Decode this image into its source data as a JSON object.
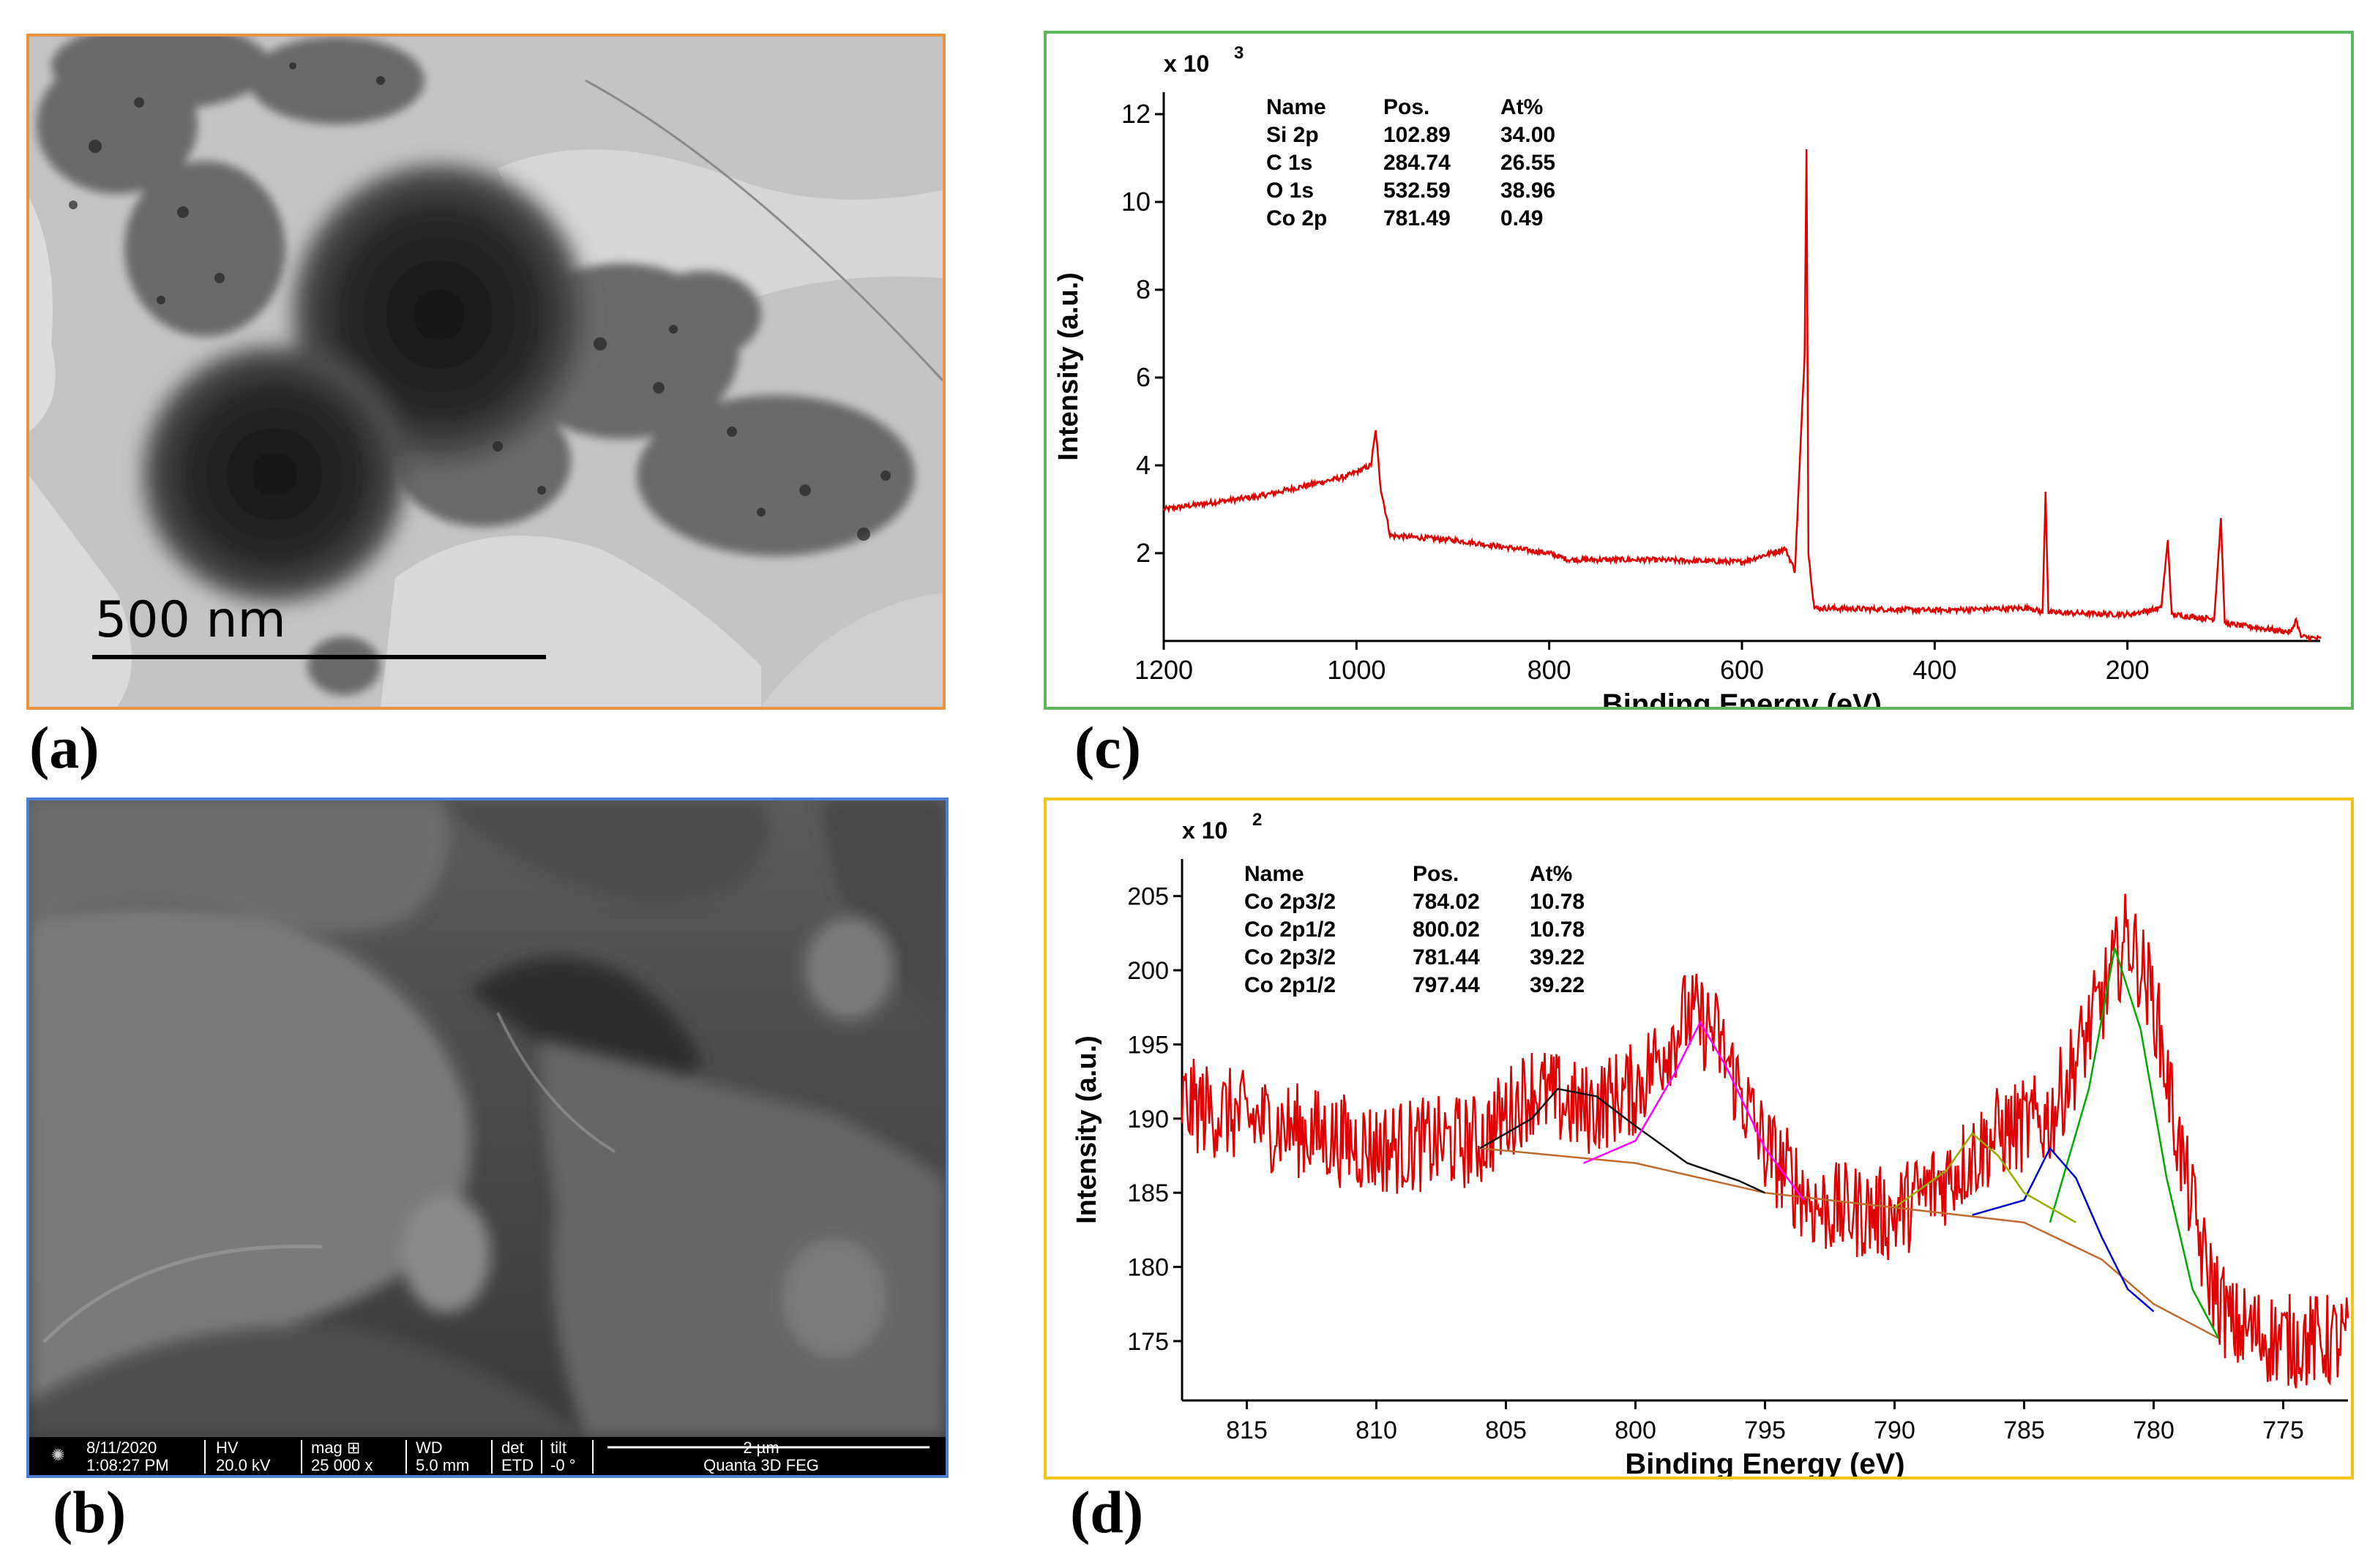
{
  "panel_labels": {
    "a": "(a)",
    "b": "(b)",
    "c": "(c)",
    "d": "(d)"
  },
  "tem": {
    "scale_label": "500 nm",
    "border_color": "#f0903a"
  },
  "sem": {
    "border_color": "#4a7fd4",
    "info": {
      "date": "8/11/2020",
      "time": "1:08:27 PM",
      "hv_label": "HV",
      "hv": "20.0 kV",
      "mag_label": "mag ⊞",
      "mag": "25 000 x",
      "wd_label": "WD",
      "wd": "5.0 mm",
      "det_label": "det",
      "det": "ETD",
      "tilt_label": "tilt",
      "tilt": "-0 °",
      "scale_label": "2 µm",
      "instrument": "Quanta 3D FEG"
    }
  },
  "chart_data": [
    {
      "id": "c",
      "type": "line",
      "border_color": "#5cb85c",
      "line_color": "#e00000",
      "xlabel": "Binding Energy (eV)",
      "ylabel": "Intensity (a.u.)",
      "multiplier": "x 10",
      "multiplier_exp": "3",
      "xlim": [
        1200,
        0
      ],
      "ylim": [
        0,
        12.5
      ],
      "xticks": [
        1200,
        1000,
        800,
        600,
        400,
        200
      ],
      "yticks": [
        2,
        4,
        6,
        8,
        10,
        12
      ],
      "table": {
        "headers": [
          "Name",
          "Pos.",
          "At%"
        ],
        "rows": [
          [
            "Si 2p",
            "102.89",
            "34.00"
          ],
          [
            "C 1s",
            "284.74",
            "26.55"
          ],
          [
            "O 1s",
            "532.59",
            "38.96"
          ],
          [
            "Co 2p",
            "781.49",
            "0.49"
          ]
        ]
      },
      "series": [
        {
          "values_xy": [
            [
              1200,
              3.0
            ],
            [
              1100,
              3.3
            ],
            [
              1010,
              3.75
            ],
            [
              985,
              4.0
            ],
            [
              980,
              4.8
            ],
            [
              975,
              3.5
            ],
            [
              965,
              2.4
            ],
            [
              900,
              2.3
            ],
            [
              800,
              2.0
            ],
            [
              780,
              1.85
            ],
            [
              700,
              1.85
            ],
            [
              600,
              1.8
            ],
            [
              555,
              2.1
            ],
            [
              545,
              1.6
            ],
            [
              535,
              6.5
            ],
            [
              533,
              11.2
            ],
            [
              531,
              2.0
            ],
            [
              525,
              0.75
            ],
            [
              400,
              0.7
            ],
            [
              300,
              0.75
            ],
            [
              288,
              0.65
            ],
            [
              285,
              3.4
            ],
            [
              282,
              0.65
            ],
            [
              200,
              0.6
            ],
            [
              165,
              0.75
            ],
            [
              158,
              2.3
            ],
            [
              154,
              0.6
            ],
            [
              110,
              0.5
            ],
            [
              103,
              2.8
            ],
            [
              99,
              0.4
            ],
            [
              30,
              0.2
            ],
            [
              25,
              0.5
            ],
            [
              20,
              0.1
            ],
            [
              0,
              0.05
            ]
          ]
        }
      ]
    },
    {
      "id": "d",
      "type": "line",
      "border_color": "#f0c419",
      "xlabel": "Binding Energy (eV)",
      "ylabel": "Intensity (a.u.)",
      "multiplier": "x 10",
      "multiplier_exp": "2",
      "xlim": [
        817.5,
        772.5
      ],
      "ylim": [
        171,
        207.5
      ],
      "xticks": [
        815,
        810,
        805,
        800,
        795,
        790,
        785,
        780,
        775
      ],
      "yticks": [
        175,
        180,
        185,
        190,
        195,
        200,
        205
      ],
      "table": {
        "headers": [
          "Name",
          "Pos.",
          "At%"
        ],
        "rows": [
          [
            "Co 2p3/2",
            "784.02",
            "10.78"
          ],
          [
            "Co 2p1/2",
            "800.02",
            "10.78"
          ],
          [
            "Co 2p3/2",
            "781.44",
            "39.22"
          ],
          [
            "Co 2p1/2",
            "797.44",
            "39.22"
          ]
        ]
      },
      "series": [
        {
          "name": "",
          "color": "#e00000",
          "style": "noisy",
          "values_xy": [
            [
              817.5,
              191
            ],
            [
              815,
              190
            ],
            [
              810,
              188
            ],
            [
              806,
              188.5
            ],
            [
              804,
              192
            ],
            [
              802,
              190.5
            ],
            [
              800,
              192
            ],
            [
              798,
              197
            ],
            [
              797,
              196
            ],
            [
              795,
              188
            ],
            [
              793,
              184
            ],
            [
              790,
              183.5
            ],
            [
              788,
              186
            ],
            [
              786,
              189
            ],
            [
              784,
              190
            ],
            [
              782,
              198
            ],
            [
              781,
              202.5
            ],
            [
              780,
              198
            ],
            [
              779,
              188
            ],
            [
              778,
              180
            ],
            [
              777,
              176
            ],
            [
              775,
              175
            ],
            [
              772.5,
              175
            ]
          ]
        },
        {
          "name": "",
          "color": "#c06a2b",
          "values_xy": [
            [
              806,
              188
            ],
            [
              800,
              187
            ],
            [
              795,
              185
            ],
            [
              790,
              184
            ],
            [
              785,
              183
            ],
            [
              782,
              180.5
            ],
            [
              780,
              177.5
            ],
            [
              777.5,
              175.2
            ]
          ]
        },
        {
          "name": "",
          "color": "#111111",
          "values_xy": [
            [
              806,
              188
            ],
            [
              804,
              190
            ],
            [
              803,
              192
            ],
            [
              801.5,
              191.5
            ],
            [
              800,
              189.5
            ],
            [
              798,
              187
            ],
            [
              796,
              185.8
            ],
            [
              795,
              185
            ]
          ]
        },
        {
          "name": "",
          "color": "#ff00ff",
          "values_xy": [
            [
              802,
              187
            ],
            [
              800,
              188.5
            ],
            [
              798.5,
              193
            ],
            [
              797.5,
              196.5
            ],
            [
              796.5,
              193.5
            ],
            [
              795,
              188
            ],
            [
              793.5,
              184.5
            ]
          ]
        },
        {
          "name": "",
          "color": "#00aa00",
          "values_xy": [
            [
              784,
              183
            ],
            [
              782.5,
              192
            ],
            [
              781.5,
              201.5
            ],
            [
              780.5,
              196
            ],
            [
              779.5,
              186
            ],
            [
              778.5,
              178.5
            ],
            [
              777.5,
              175.2
            ]
          ]
        },
        {
          "name": "",
          "color": "#0000cc",
          "values_xy": [
            [
              787,
              183.5
            ],
            [
              785,
              184.5
            ],
            [
              784,
              188
            ],
            [
              783,
              186
            ],
            [
              782,
              182
            ],
            [
              781,
              178.5
            ],
            [
              780,
              177
            ]
          ]
        },
        {
          "name": "",
          "color": "#99aa00",
          "values_xy": [
            [
              790,
              184
            ],
            [
              788,
              186.5
            ],
            [
              787,
              189
            ],
            [
              786,
              187.5
            ],
            [
              785,
              185
            ],
            [
              784,
              184
            ],
            [
              783,
              183
            ]
          ]
        }
      ]
    }
  ]
}
